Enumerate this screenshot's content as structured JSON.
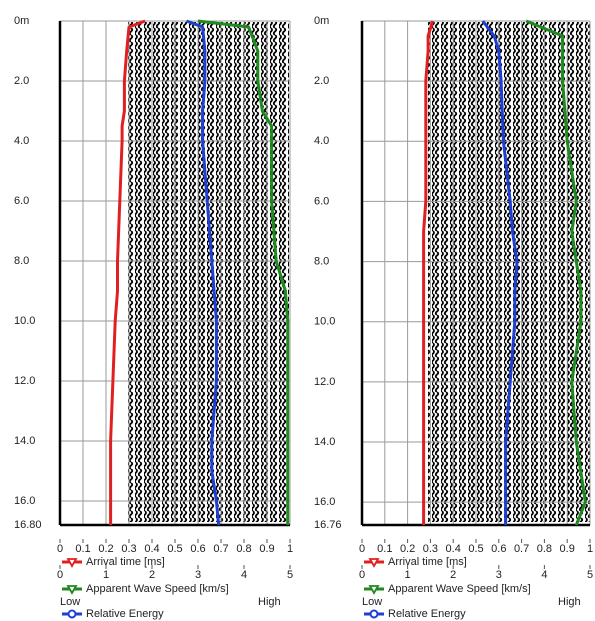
{
  "chart_data": [
    {
      "type": "line",
      "depth": [
        0,
        0.2,
        1,
        2,
        3,
        3.5,
        4,
        6,
        8,
        9,
        10,
        12,
        14,
        15,
        16,
        16.8
      ],
      "ylim": [
        0,
        16.8
      ],
      "yticks": [
        {
          "value": 0,
          "label": "0m"
        },
        {
          "value": 2,
          "label": "2.0"
        },
        {
          "value": 4,
          "label": "4.0"
        },
        {
          "value": 6,
          "label": "6.0"
        },
        {
          "value": 8,
          "label": "8.0"
        },
        {
          "value": 10,
          "label": "10.0"
        },
        {
          "value": 12,
          "label": "12.0"
        },
        {
          "value": 14,
          "label": "14.0"
        },
        {
          "value": 16,
          "label": "16.0"
        },
        {
          "value": 16.8,
          "label": "16.80"
        }
      ],
      "xlim": [
        0,
        1
      ],
      "xticks": [
        0,
        0.1,
        0.2,
        0.3,
        0.4,
        0.5,
        0.6,
        0.7,
        0.8,
        0.9,
        1
      ],
      "x2lim": [
        0,
        5
      ],
      "x2ticks": [
        0,
        1,
        2,
        3,
        4,
        5
      ],
      "energy_labels": [
        "Low",
        "High"
      ],
      "grid": true,
      "series": [
        {
          "name": "Arrival time [ms]",
          "color": "#e02020",
          "axis": "x",
          "marker": "triangle",
          "values": [
            0.37,
            0.3,
            0.29,
            0.28,
            0.28,
            0.27,
            0.27,
            0.26,
            0.25,
            0.25,
            0.24,
            0.23,
            0.22,
            0.22,
            0.22,
            0.22
          ]
        },
        {
          "name": "Apparent Wave Speed [km/s]",
          "color": "#1f8a1f",
          "axis": "x2",
          "marker": "triangle",
          "values": [
            3.0,
            4.1,
            4.3,
            4.3,
            4.4,
            4.6,
            4.6,
            4.6,
            4.7,
            4.9,
            4.95,
            4.95,
            4.95,
            4.95,
            4.95,
            4.95
          ]
        },
        {
          "name": "Relative Energy",
          "color": "#1f3fd0",
          "axis": "x",
          "marker": "circle",
          "values": [
            0.55,
            0.62,
            0.63,
            0.63,
            0.62,
            0.62,
            0.62,
            0.64,
            0.66,
            0.67,
            0.68,
            0.68,
            0.66,
            0.66,
            0.68,
            0.69
          ]
        }
      ]
    },
    {
      "type": "line",
      "depth": [
        0,
        0.5,
        1,
        2,
        4,
        6,
        7,
        8,
        9,
        10,
        11,
        12,
        14,
        16,
        16.76
      ],
      "ylim": [
        0,
        16.76
      ],
      "yticks": [
        {
          "value": 0,
          "label": "0m"
        },
        {
          "value": 2,
          "label": "2.0"
        },
        {
          "value": 4,
          "label": "4.0"
        },
        {
          "value": 6,
          "label": "6.0"
        },
        {
          "value": 8,
          "label": "8.0"
        },
        {
          "value": 10,
          "label": "10.0"
        },
        {
          "value": 12,
          "label": "12.0"
        },
        {
          "value": 14,
          "label": "14.0"
        },
        {
          "value": 16,
          "label": "16.0"
        },
        {
          "value": 16.76,
          "label": "16.76"
        }
      ],
      "xlim": [
        0,
        1
      ],
      "xticks": [
        0,
        0.1,
        0.2,
        0.3,
        0.4,
        0.5,
        0.6,
        0.7,
        0.8,
        0.9,
        1
      ],
      "x2lim": [
        0,
        5
      ],
      "x2ticks": [
        0,
        1,
        2,
        3,
        4,
        5
      ],
      "energy_labels": [
        "Low",
        "High"
      ],
      "grid": true,
      "series": [
        {
          "name": "Arrival time [ms]",
          "color": "#e02020",
          "axis": "x",
          "marker": "triangle",
          "values": [
            0.31,
            0.29,
            0.29,
            0.28,
            0.28,
            0.28,
            0.27,
            0.27,
            0.27,
            0.27,
            0.27,
            0.27,
            0.27,
            0.27,
            0.27
          ]
        },
        {
          "name": "Apparent Wave Speed [km/s]",
          "color": "#1f8a1f",
          "axis": "x2",
          "marker": "triangle",
          "values": [
            3.6,
            4.4,
            4.4,
            4.4,
            4.5,
            4.7,
            4.6,
            4.7,
            4.8,
            4.8,
            4.7,
            4.6,
            4.7,
            4.9,
            4.7
          ]
        },
        {
          "name": "Relative Energy",
          "color": "#1f3fd0",
          "axis": "x",
          "marker": "circle",
          "values": [
            0.53,
            0.58,
            0.6,
            0.61,
            0.62,
            0.65,
            0.66,
            0.68,
            0.67,
            0.67,
            0.66,
            0.65,
            0.63,
            0.63,
            0.63
          ]
        }
      ]
    }
  ]
}
